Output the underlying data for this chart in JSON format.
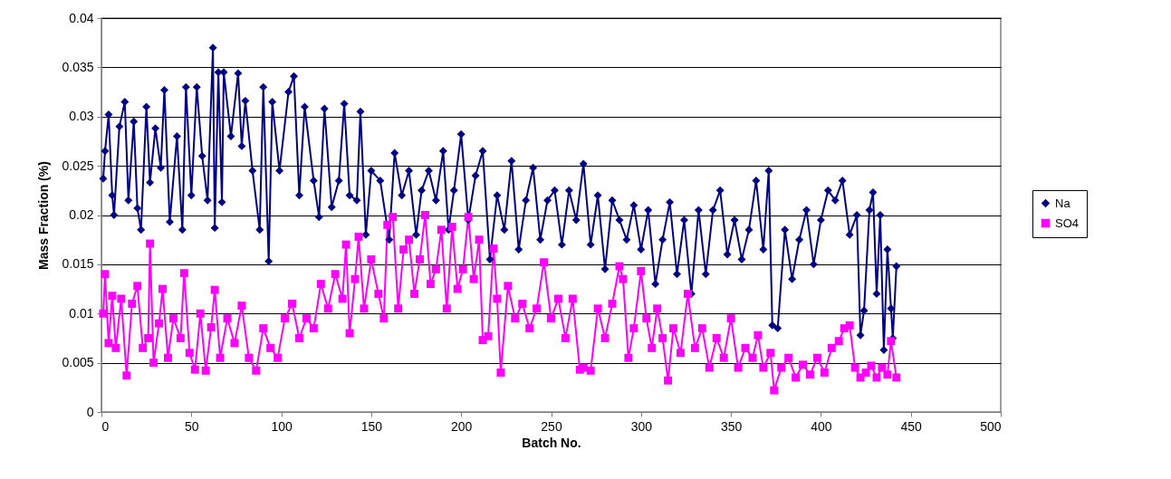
{
  "chart_data": {
    "type": "line",
    "xlabel": "Batch No.",
    "ylabel": "Mass Fraction (%)",
    "xlim": [
      0,
      500
    ],
    "xticks": [
      0,
      50,
      100,
      150,
      200,
      250,
      300,
      350,
      400,
      450,
      500
    ],
    "ylim": [
      0,
      0.04
    ],
    "yticks": [
      0,
      0.005,
      0.01,
      0.015,
      0.02,
      0.025,
      0.03,
      0.035,
      0.04
    ],
    "grid": "y",
    "legend": "right",
    "line_style": "solid",
    "series": [
      {
        "name": "Na",
        "color": "#000080",
        "marker": "diamond",
        "x": [
          1,
          2,
          4,
          6,
          7,
          10,
          13,
          15,
          18,
          20,
          22,
          25,
          27,
          30,
          33,
          35,
          38,
          42,
          45,
          47,
          50,
          53,
          56,
          59,
          62,
          63,
          65,
          67,
          68,
          72,
          76,
          78,
          80,
          84,
          88,
          90,
          93,
          95,
          99,
          104,
          107,
          110,
          113,
          118,
          121,
          124,
          128,
          132,
          135,
          138,
          142,
          144,
          147,
          150,
          155,
          160,
          163,
          167,
          171,
          175,
          178,
          182,
          186,
          190,
          193,
          196,
          200,
          204,
          208,
          212,
          216,
          220,
          224,
          228,
          232,
          236,
          240,
          244,
          248,
          252,
          256,
          260,
          264,
          268,
          272,
          276,
          280,
          284,
          288,
          292,
          296,
          300,
          304,
          308,
          312,
          316,
          320,
          324,
          328,
          332,
          336,
          340,
          344,
          348,
          352,
          356,
          360,
          364,
          368,
          371,
          373,
          376,
          380,
          384,
          388,
          392,
          396,
          400,
          404,
          408,
          412,
          416,
          420,
          422,
          424,
          427,
          429,
          431,
          433,
          435,
          437,
          439,
          440,
          442
        ],
        "values": [
          0.0237,
          0.0265,
          0.0302,
          0.022,
          0.02,
          0.029,
          0.0315,
          0.0215,
          0.0295,
          0.0207,
          0.0185,
          0.031,
          0.0233,
          0.0288,
          0.0248,
          0.0327,
          0.0193,
          0.028,
          0.0185,
          0.033,
          0.022,
          0.033,
          0.026,
          0.0215,
          0.037,
          0.0187,
          0.0345,
          0.0213,
          0.0345,
          0.028,
          0.0344,
          0.027,
          0.0316,
          0.0245,
          0.0185,
          0.033,
          0.0153,
          0.0315,
          0.0245,
          0.0325,
          0.0341,
          0.022,
          0.031,
          0.0235,
          0.0198,
          0.0308,
          0.0208,
          0.0235,
          0.0313,
          0.022,
          0.0215,
          0.0305,
          0.018,
          0.0245,
          0.0235,
          0.0175,
          0.0263,
          0.022,
          0.0245,
          0.018,
          0.0225,
          0.0245,
          0.0215,
          0.0265,
          0.0185,
          0.0225,
          0.0282,
          0.0195,
          0.024,
          0.0265,
          0.0155,
          0.022,
          0.0185,
          0.0255,
          0.0165,
          0.0215,
          0.0248,
          0.0175,
          0.0215,
          0.0225,
          0.017,
          0.0225,
          0.0195,
          0.0252,
          0.017,
          0.022,
          0.0145,
          0.0215,
          0.0195,
          0.0175,
          0.021,
          0.0165,
          0.0205,
          0.013,
          0.0175,
          0.0213,
          0.014,
          0.0195,
          0.012,
          0.0205,
          0.014,
          0.0205,
          0.0225,
          0.016,
          0.0195,
          0.0155,
          0.0185,
          0.0235,
          0.0165,
          0.0245,
          0.0088,
          0.0085,
          0.0185,
          0.0135,
          0.0175,
          0.0205,
          0.015,
          0.0195,
          0.0225,
          0.0215,
          0.0235,
          0.018,
          0.02,
          0.0078,
          0.0103,
          0.0205,
          0.0223,
          0.012,
          0.02,
          0.0063,
          0.0165,
          0.0105,
          0.0075,
          0.0148
        ]
      },
      {
        "name": "SO4",
        "color": "#ff00ff",
        "marker": "square",
        "x": [
          1,
          2,
          4,
          6,
          8,
          11,
          14,
          17,
          20,
          23,
          26,
          27,
          29,
          32,
          34,
          37,
          40,
          44,
          46,
          49,
          52,
          55,
          58,
          61,
          63,
          66,
          70,
          74,
          78,
          82,
          86,
          90,
          94,
          98,
          102,
          106,
          110,
          114,
          118,
          122,
          126,
          130,
          134,
          136,
          138,
          141,
          143,
          146,
          150,
          154,
          157,
          159,
          162,
          165,
          168,
          171,
          174,
          177,
          180,
          183,
          186,
          189,
          192,
          195,
          198,
          201,
          204,
          207,
          210,
          212,
          215,
          218,
          220,
          222,
          226,
          230,
          234,
          238,
          242,
          246,
          250,
          254,
          258,
          262,
          266,
          268,
          272,
          276,
          280,
          284,
          288,
          290,
          293,
          296,
          300,
          303,
          306,
          309,
          312,
          315,
          318,
          322,
          326,
          330,
          334,
          338,
          342,
          346,
          350,
          354,
          358,
          362,
          365,
          368,
          372,
          374,
          378,
          382,
          386,
          390,
          394,
          398,
          402,
          406,
          410,
          413,
          416,
          419,
          422,
          425,
          428,
          431,
          434,
          437,
          439,
          442
        ],
        "values": [
          0.01,
          0.014,
          0.007,
          0.0118,
          0.0065,
          0.0115,
          0.0037,
          0.011,
          0.0128,
          0.0065,
          0.0075,
          0.0171,
          0.005,
          0.009,
          0.0125,
          0.0055,
          0.0095,
          0.0075,
          0.0141,
          0.006,
          0.0043,
          0.01,
          0.0042,
          0.0086,
          0.0124,
          0.0055,
          0.0095,
          0.007,
          0.0108,
          0.0055,
          0.0042,
          0.0085,
          0.0065,
          0.0055,
          0.0095,
          0.011,
          0.0075,
          0.0095,
          0.0085,
          0.013,
          0.0105,
          0.014,
          0.0115,
          0.017,
          0.008,
          0.0135,
          0.0178,
          0.0105,
          0.0155,
          0.012,
          0.0095,
          0.019,
          0.0198,
          0.0105,
          0.0165,
          0.0175,
          0.012,
          0.0155,
          0.02,
          0.013,
          0.0145,
          0.0185,
          0.0105,
          0.0188,
          0.0125,
          0.0145,
          0.0198,
          0.0135,
          0.0175,
          0.0073,
          0.0077,
          0.0166,
          0.0115,
          0.004,
          0.0128,
          0.0095,
          0.011,
          0.0085,
          0.0105,
          0.0152,
          0.0095,
          0.0115,
          0.0075,
          0.0115,
          0.0043,
          0.0045,
          0.0042,
          0.0105,
          0.0075,
          0.011,
          0.0148,
          0.0135,
          0.0055,
          0.0085,
          0.0143,
          0.0095,
          0.0065,
          0.0105,
          0.0075,
          0.0032,
          0.0085,
          0.006,
          0.012,
          0.0065,
          0.0085,
          0.0045,
          0.0075,
          0.0055,
          0.0095,
          0.0045,
          0.0065,
          0.0055,
          0.0078,
          0.0045,
          0.006,
          0.0022,
          0.0045,
          0.0055,
          0.0035,
          0.0048,
          0.0038,
          0.0055,
          0.004,
          0.0065,
          0.0072,
          0.0085,
          0.0088,
          0.0045,
          0.0035,
          0.004,
          0.0047,
          0.0035,
          0.0045,
          0.0038,
          0.0072,
          0.0035
        ]
      }
    ]
  }
}
